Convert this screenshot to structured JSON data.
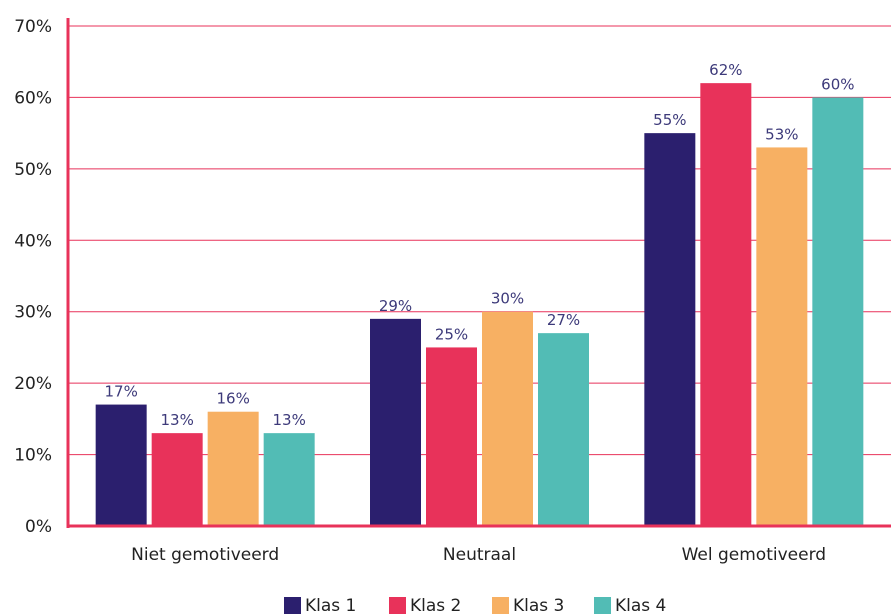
{
  "chart_data": {
    "type": "bar",
    "title": "",
    "xlabel": "",
    "ylabel": "",
    "ylim": [
      0,
      70
    ],
    "yticks": [
      "0%",
      "10%",
      "20%",
      "30%",
      "40%",
      "50%",
      "60%",
      "70%"
    ],
    "categories": [
      "Niet gemotiveerd",
      "Neutraal",
      "Wel gemotiveerd"
    ],
    "series": [
      {
        "name": "Klas 1",
        "color": "#2b1f6e",
        "values": [
          17,
          29,
          55
        ],
        "labels": [
          "17%",
          "29%",
          "55%"
        ]
      },
      {
        "name": "Klas 2",
        "color": "#e8325a",
        "values": [
          13,
          25,
          62
        ],
        "labels": [
          "13%",
          "25%",
          "62%"
        ]
      },
      {
        "name": "Klas 3",
        "color": "#f7b063",
        "values": [
          16,
          30,
          53
        ],
        "labels": [
          "16%",
          "30%",
          "53%"
        ]
      },
      {
        "name": "Klas 4",
        "color": "#52bcb5",
        "values": [
          13,
          27,
          60
        ],
        "labels": [
          "13%",
          "27%",
          "60%"
        ]
      }
    ],
    "grid": true,
    "gridColor": "#e8325a",
    "axisColor": "#e8325a",
    "legend": "bottom"
  }
}
